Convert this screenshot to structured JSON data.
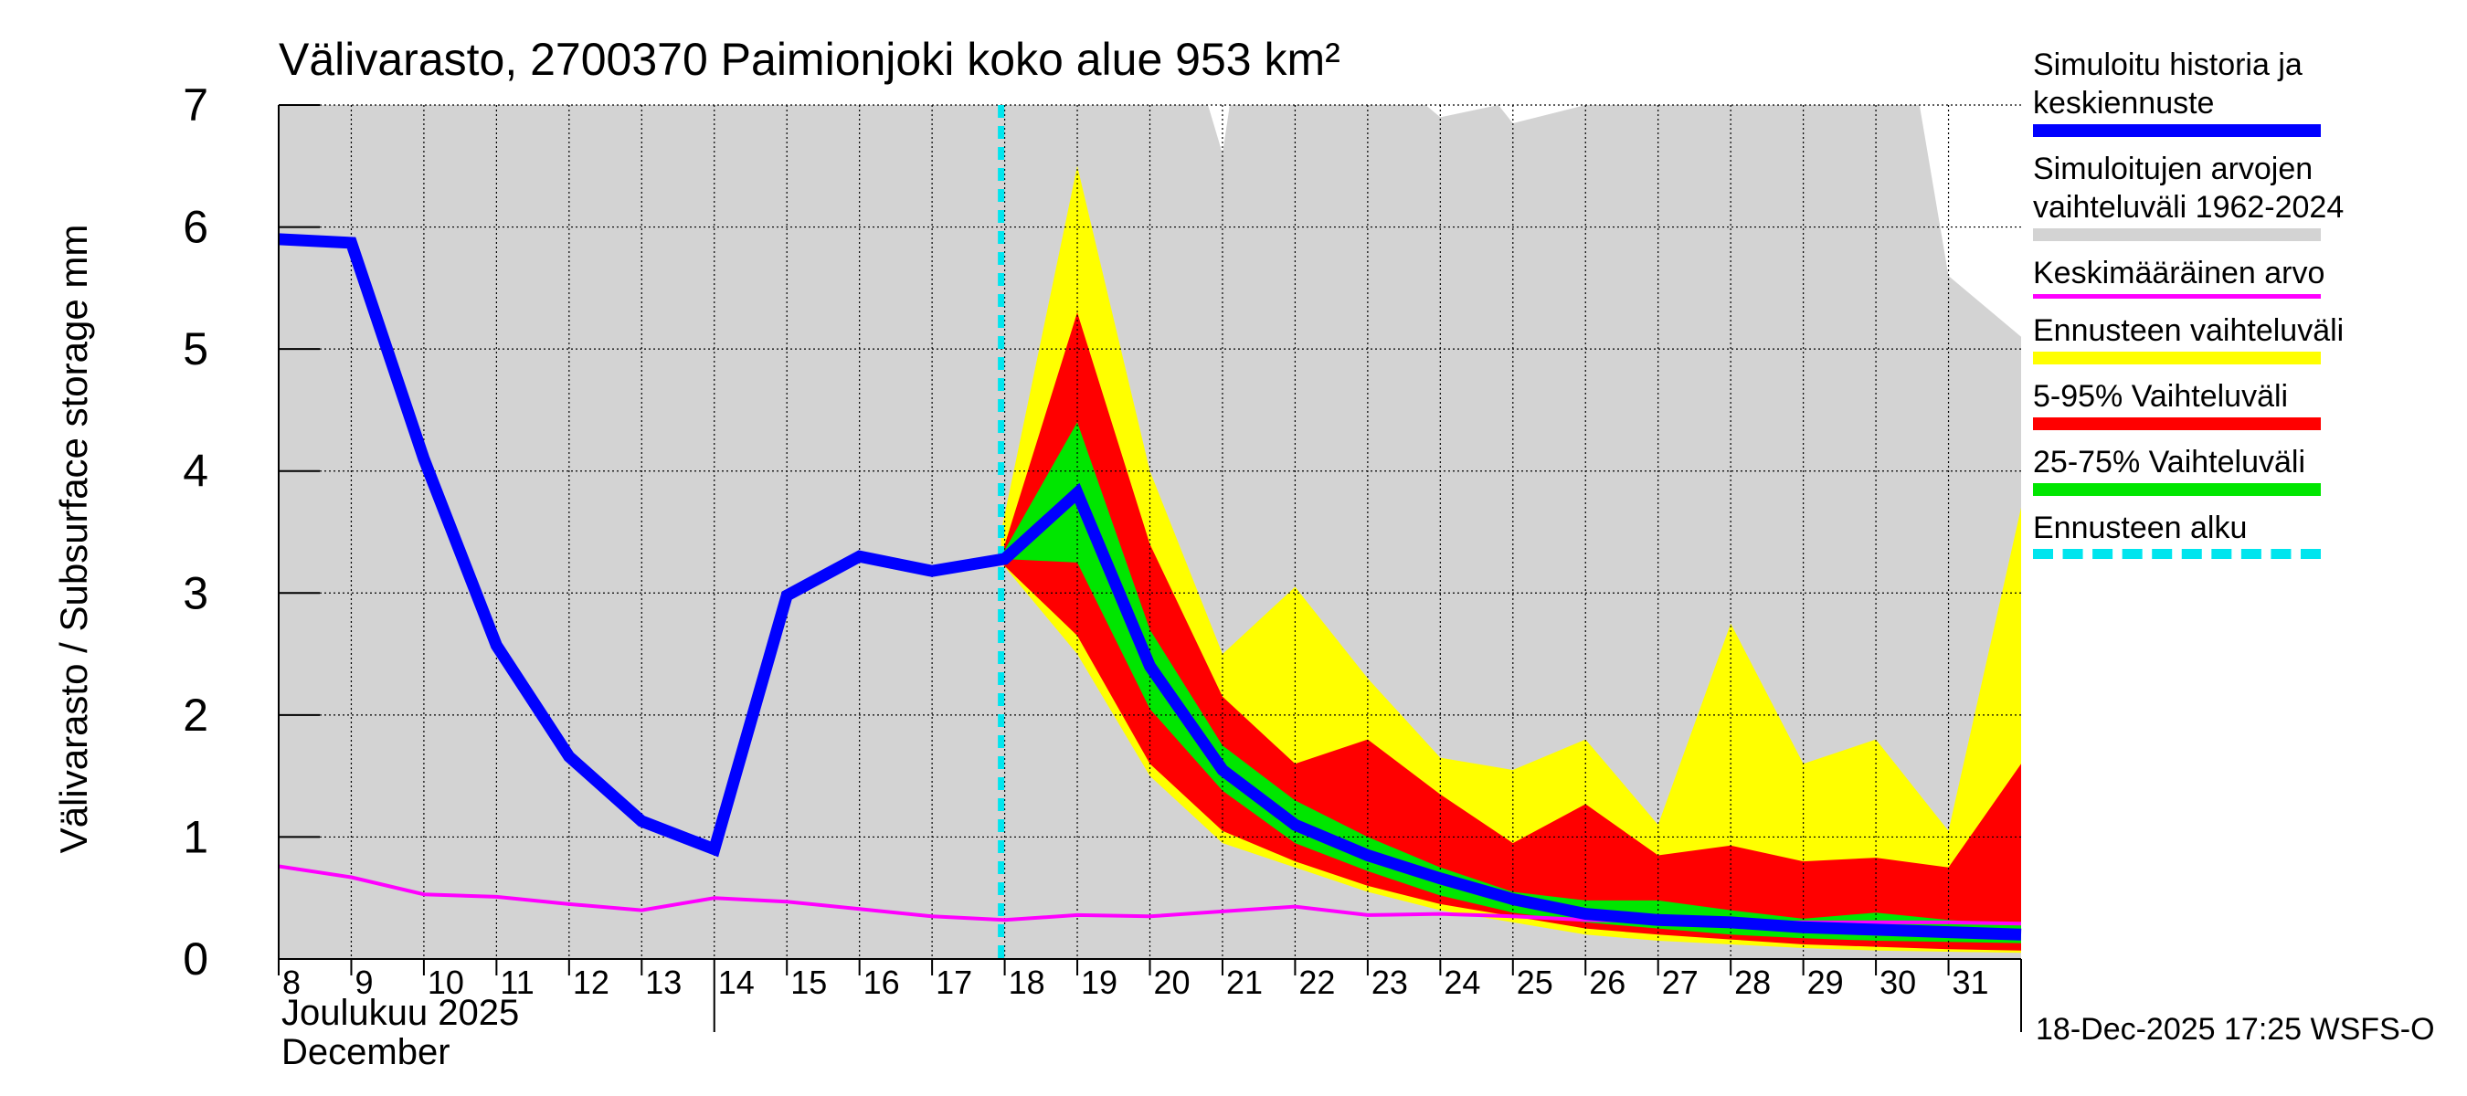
{
  "chart_data": {
    "type": "area",
    "title": "Välivarasto, 2700370 Paimionjoki koko alue 953 km²",
    "ylabel": "Välivarasto / Subsurface storage  mm",
    "xlabel_line1": "Joulukuu  2025",
    "xlabel_line2": "December",
    "ylim": [
      0,
      7
    ],
    "yticks": [
      0,
      1,
      2,
      3,
      4,
      5,
      6,
      7
    ],
    "x_days": [
      8,
      9,
      10,
      11,
      12,
      13,
      14,
      15,
      16,
      17,
      18,
      19,
      20,
      21,
      22,
      23,
      24,
      25,
      26,
      27,
      28,
      29,
      30,
      31
    ],
    "xtick_labels": [
      "8",
      "9",
      "10",
      "11",
      "12",
      "13",
      "14",
      "15",
      "16",
      "17",
      "18",
      "19",
      "20",
      "21",
      "22",
      "23",
      "24",
      "25",
      "26",
      "27",
      "28",
      "29",
      "30",
      "31"
    ],
    "xlim": [
      8,
      32
    ],
    "forecast_start": 17.95,
    "historical_range": {
      "name": "Simuloitujen arvojen vaihteluväli 1962-2024",
      "x": [
        8,
        9,
        10,
        11,
        12,
        13,
        14,
        15,
        16,
        17,
        18,
        19,
        20,
        20.8,
        21,
        21.1,
        22,
        23,
        23.8,
        24,
        24.8,
        25,
        26,
        27,
        28,
        29,
        30,
        30.6,
        31,
        32
      ],
      "upper": [
        7,
        7,
        7,
        7,
        7,
        7,
        7,
        7,
        7,
        7,
        7,
        7,
        7,
        7,
        6.6,
        7,
        7,
        7,
        7,
        6.9,
        7,
        6.85,
        7,
        7,
        7,
        7,
        7,
        7,
        5.6,
        5.1
      ],
      "lower": [
        0,
        0,
        0,
        0,
        0,
        0,
        0,
        0,
        0,
        0,
        0,
        0,
        0,
        0,
        0,
        0,
        0,
        0,
        0,
        0,
        0,
        0,
        0,
        0,
        0,
        0,
        0,
        0,
        0,
        0
      ]
    },
    "mean": {
      "name": "Keskimääräinen arvo",
      "x": [
        8,
        9,
        10,
        11,
        12,
        13,
        14,
        15,
        16,
        17,
        18,
        19,
        20,
        21,
        22,
        23,
        24,
        25,
        26,
        27,
        28,
        29,
        30,
        31,
        32
      ],
      "values": [
        0.76,
        0.67,
        0.53,
        0.51,
        0.45,
        0.4,
        0.5,
        0.47,
        0.41,
        0.35,
        0.32,
        0.36,
        0.35,
        0.39,
        0.43,
        0.36,
        0.37,
        0.35,
        0.32,
        0.31,
        0.3,
        0.3,
        0.3,
        0.3,
        0.29
      ]
    },
    "forecast_x": [
      17.95,
      19,
      20,
      21,
      22,
      23,
      24,
      25,
      26,
      27,
      28,
      29,
      30,
      31,
      32
    ],
    "forecast_range": {
      "name": "Ennusteen vaihteluväli",
      "upper": [
        3.5,
        6.5,
        4.0,
        2.5,
        3.05,
        2.3,
        1.65,
        1.55,
        1.8,
        1.1,
        2.75,
        1.6,
        1.8,
        1.05,
        3.7
      ],
      "lower": [
        3.25,
        2.5,
        1.5,
        0.95,
        0.75,
        0.55,
        0.4,
        0.3,
        0.2,
        0.15,
        0.12,
        0.09,
        0.07,
        0.06,
        0.05
      ]
    },
    "p5_95": {
      "name": "5-95% Vaihteluväli",
      "upper": [
        3.3,
        5.3,
        3.4,
        2.15,
        1.6,
        1.8,
        1.35,
        0.95,
        1.27,
        0.85,
        0.93,
        0.8,
        0.83,
        0.75,
        1.6
      ],
      "lower": [
        3.25,
        2.65,
        1.6,
        1.05,
        0.8,
        0.6,
        0.45,
        0.35,
        0.25,
        0.2,
        0.16,
        0.12,
        0.1,
        0.08,
        0.07
      ]
    },
    "p25_75": {
      "name": "25-75% Vaihteluväli",
      "upper": [
        3.3,
        4.4,
        2.7,
        1.75,
        1.3,
        1.0,
        0.75,
        0.55,
        0.48,
        0.48,
        0.4,
        0.33,
        0.38,
        0.32,
        0.28
      ]
    },
    "p25_75_lower": [
      3.28,
      3.25,
      2.05,
      1.38,
      0.95,
      0.72,
      0.52,
      0.38,
      0.3,
      0.25,
      0.2,
      0.17,
      0.15,
      0.14,
      0.13
    ],
    "median": {
      "name": "Simuloitu historia ja keskiennuste",
      "x": [
        8,
        9,
        10,
        11,
        12,
        13,
        14,
        15,
        16,
        17,
        18,
        19,
        20,
        21,
        22,
        23,
        24,
        25,
        26,
        27,
        28,
        29,
        30,
        31,
        32
      ],
      "values": [
        5.9,
        5.87,
        4.1,
        2.57,
        1.66,
        1.13,
        0.9,
        2.98,
        3.3,
        3.18,
        3.28,
        3.82,
        2.4,
        1.55,
        1.1,
        0.85,
        0.66,
        0.49,
        0.37,
        0.32,
        0.3,
        0.26,
        0.24,
        0.22,
        0.2
      ]
    }
  },
  "colors": {
    "historical": "#d3d3d3",
    "mean": "#ff00ff",
    "forecast_range": "#ffff00",
    "p5_95": "#ff0000",
    "p25_75": "#00e600",
    "median": "#0000ff",
    "forecast_start": "#00e5ee",
    "grid": "#000000"
  },
  "legend": [
    {
      "id": "median",
      "label": "Simuloitu historia ja\nkeskiennuste",
      "color": "#0000ff",
      "style": "solid"
    },
    {
      "id": "historical",
      "label": "Simuloitujen arvojen\nvaihteluväli 1962-2024",
      "color": "#d3d3d3",
      "style": "solid"
    },
    {
      "id": "mean",
      "label": "Keskimääräinen arvo",
      "color": "#ff00ff",
      "style": "thin"
    },
    {
      "id": "forecast_range",
      "label": "Ennusteen vaihteluväli",
      "color": "#ffff00",
      "style": "solid"
    },
    {
      "id": "p5_95",
      "label": "5-95% Vaihteluväli",
      "color": "#ff0000",
      "style": "solid"
    },
    {
      "id": "p25_75",
      "label": "25-75% Vaihteluväli",
      "color": "#00e600",
      "style": "solid"
    },
    {
      "id": "forecast_start",
      "label": "Ennusteen alku",
      "color": "#00e5ee",
      "style": "dashed"
    }
  ],
  "footer": {
    "timestamp": "18-Dec-2025 17:25 WSFS-O"
  }
}
